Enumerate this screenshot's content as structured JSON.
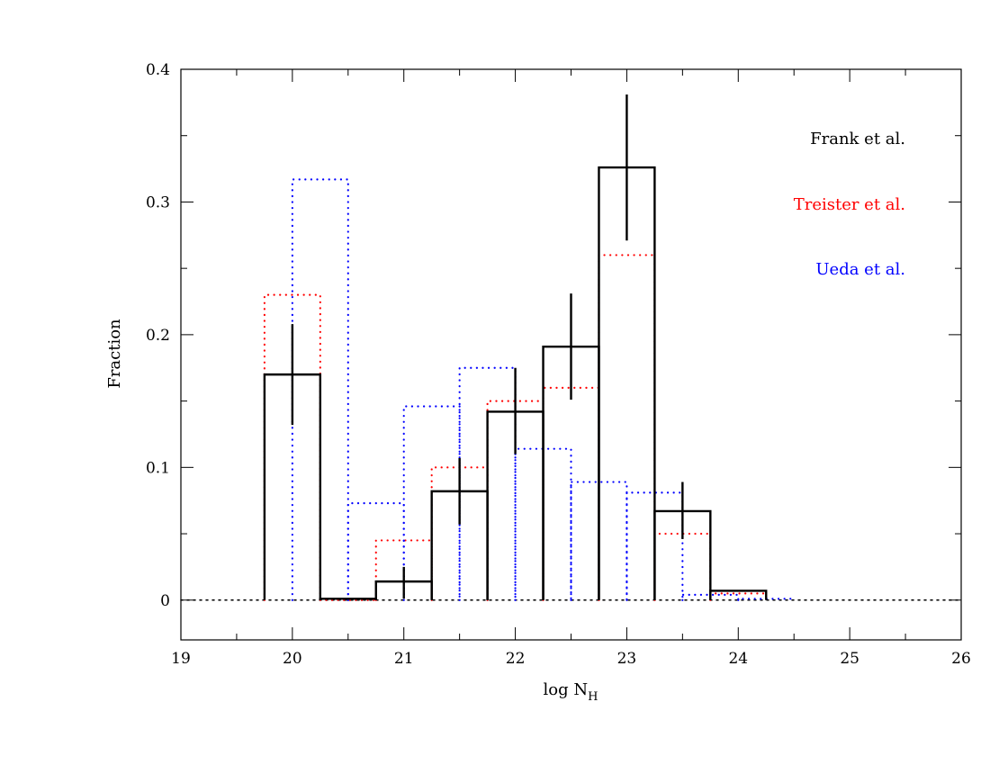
{
  "chart_data": {
    "type": "histogram",
    "title": "",
    "xlabel": "log N",
    "xlabel_subscript": "H",
    "ylabel": "Fraction",
    "xlim": [
      19,
      26
    ],
    "ylim": [
      -0.03,
      0.4
    ],
    "xticks": [
      19,
      20,
      21,
      22,
      23,
      24,
      25,
      26
    ],
    "xtick_labels": [
      "19",
      "20",
      "21",
      "22",
      "23",
      "24",
      "25",
      "26"
    ],
    "yticks": [
      0,
      0.1,
      0.2,
      0.3,
      0.4
    ],
    "ytick_labels": [
      "0",
      "0.1",
      "0.2",
      "0.3",
      "0.4"
    ],
    "zero_line": true,
    "grid": false,
    "legend_position": "top-right",
    "series": [
      {
        "name": "Frank et al.",
        "color": "#000000",
        "style": "solid",
        "bins": [
          {
            "x0": 19.75,
            "x1": 20.25,
            "value": 0.17,
            "err": [
              0.132,
              0.208
            ]
          },
          {
            "x0": 20.25,
            "x1": 20.75,
            "value": 0.001
          },
          {
            "x0": 20.75,
            "x1": 21.25,
            "value": 0.014,
            "err": [
              0.001,
              0.025
            ]
          },
          {
            "x0": 21.25,
            "x1": 21.75,
            "value": 0.082,
            "err": [
              0.057,
              0.107
            ]
          },
          {
            "x0": 21.75,
            "x1": 22.25,
            "value": 0.142,
            "err": [
              0.11,
              0.175
            ]
          },
          {
            "x0": 22.25,
            "x1": 22.75,
            "value": 0.191,
            "err": [
              0.151,
              0.231
            ]
          },
          {
            "x0": 22.75,
            "x1": 23.25,
            "value": 0.326,
            "err": [
              0.271,
              0.381
            ]
          },
          {
            "x0": 23.25,
            "x1": 23.75,
            "value": 0.067,
            "err": [
              0.046,
              0.089
            ]
          },
          {
            "x0": 23.75,
            "x1": 24.25,
            "value": 0.007
          }
        ]
      },
      {
        "name": "Treister et al.",
        "color": "#ff0000",
        "style": "dotted",
        "bins": [
          {
            "x0": 19.75,
            "x1": 20.25,
            "value": 0.23
          },
          {
            "x0": 20.25,
            "x1": 20.75,
            "value": 0.0
          },
          {
            "x0": 20.75,
            "x1": 21.25,
            "value": 0.045
          },
          {
            "x0": 21.25,
            "x1": 21.75,
            "value": 0.1
          },
          {
            "x0": 21.75,
            "x1": 22.25,
            "value": 0.15
          },
          {
            "x0": 22.25,
            "x1": 22.75,
            "value": 0.16
          },
          {
            "x0": 22.75,
            "x1": 23.25,
            "value": 0.26
          },
          {
            "x0": 23.25,
            "x1": 23.75,
            "value": 0.05
          },
          {
            "x0": 23.75,
            "x1": 24.25,
            "value": 0.005
          }
        ]
      },
      {
        "name": "Ueda et al.",
        "color": "#0000ff",
        "style": "dotted",
        "bins": [
          {
            "x0": 20.0,
            "x1": 20.5,
            "value": 0.317
          },
          {
            "x0": 20.5,
            "x1": 21.0,
            "value": 0.073
          },
          {
            "x0": 21.0,
            "x1": 21.5,
            "value": 0.146
          },
          {
            "x0": 21.5,
            "x1": 22.0,
            "value": 0.175
          },
          {
            "x0": 22.0,
            "x1": 22.5,
            "value": 0.114
          },
          {
            "x0": 22.5,
            "x1": 23.0,
            "value": 0.089
          },
          {
            "x0": 23.0,
            "x1": 23.5,
            "value": 0.081
          },
          {
            "x0": 23.5,
            "x1": 24.0,
            "value": 0.004
          },
          {
            "x0": 24.0,
            "x1": 24.5,
            "value": 0.001
          }
        ]
      }
    ]
  }
}
